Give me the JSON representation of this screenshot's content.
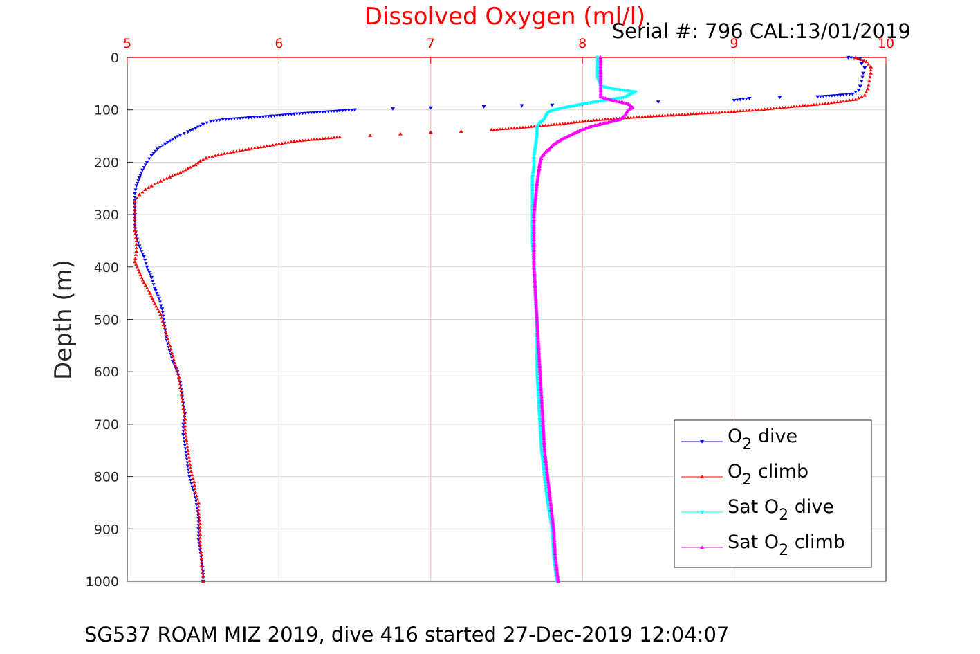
{
  "chart_data": {
    "type": "scatter",
    "title": "Dissolved Oxygen (ml/l)",
    "serial_label": "Serial #: 796  CAL:13/01/2019",
    "ylabel": "Depth (m)",
    "caption": "SG537 ROAM MIZ 2019, dive 416 started 27-Dec-2019 12:04:07",
    "xlim": [
      5,
      10
    ],
    "ylim": [
      0,
      1000
    ],
    "y_reversed": true,
    "x_axis_position": "top",
    "xticks": [
      5,
      6,
      7,
      8,
      9,
      10
    ],
    "yticks": [
      0,
      100,
      200,
      300,
      400,
      500,
      600,
      700,
      800,
      900,
      1000
    ],
    "grid": true,
    "grid_color_x": "#ffb3b3",
    "grid_color_y": "#d9d9d9",
    "axis_color": "#ff0000",
    "legend_position": "bottom-right",
    "series": [
      {
        "name": "O2 dive",
        "legend_label": {
          "pre": "O",
          "sub": "2",
          "post": " dive"
        },
        "color": "#0000ff",
        "marker": "triangle-down",
        "points": [
          [
            9.75,
            0
          ],
          [
            9.83,
            2
          ],
          [
            9.85,
            6
          ],
          [
            9.84,
            12
          ],
          [
            9.86,
            20
          ],
          [
            9.85,
            30
          ],
          [
            9.84,
            45
          ],
          [
            9.83,
            55
          ],
          [
            9.82,
            62
          ],
          [
            9.78,
            70
          ],
          [
            9.7,
            72
          ],
          [
            9.55,
            75
          ],
          [
            9.3,
            76
          ],
          [
            9.1,
            78
          ],
          [
            9.0,
            82
          ],
          [
            8.5,
            85
          ],
          [
            8.0,
            90
          ],
          [
            7.8,
            91
          ],
          [
            7.6,
            92
          ],
          [
            7.35,
            94
          ],
          [
            7.0,
            96
          ],
          [
            6.75,
            98
          ],
          [
            6.5,
            100
          ],
          [
            6.4,
            102
          ],
          [
            6.25,
            105
          ],
          [
            6.1,
            108
          ],
          [
            5.95,
            112
          ],
          [
            5.8,
            115
          ],
          [
            5.65,
            118
          ],
          [
            5.55,
            122
          ],
          [
            5.5,
            128
          ],
          [
            5.45,
            135
          ],
          [
            5.4,
            142
          ],
          [
            5.35,
            148
          ],
          [
            5.3,
            156
          ],
          [
            5.25,
            165
          ],
          [
            5.2,
            175
          ],
          [
            5.16,
            187
          ],
          [
            5.13,
            200
          ],
          [
            5.1,
            215
          ],
          [
            5.08,
            230
          ],
          [
            5.06,
            245
          ],
          [
            5.05,
            260
          ],
          [
            5.05,
            280
          ],
          [
            5.05,
            300
          ],
          [
            5.05,
            320
          ],
          [
            5.06,
            340
          ],
          [
            5.08,
            360
          ],
          [
            5.11,
            380
          ],
          [
            5.13,
            400
          ],
          [
            5.16,
            420
          ],
          [
            5.18,
            440
          ],
          [
            5.21,
            460
          ],
          [
            5.23,
            480
          ],
          [
            5.24,
            500
          ],
          [
            5.25,
            520
          ],
          [
            5.26,
            540
          ],
          [
            5.28,
            560
          ],
          [
            5.3,
            580
          ],
          [
            5.33,
            600
          ],
          [
            5.35,
            620
          ],
          [
            5.36,
            640
          ],
          [
            5.37,
            660
          ],
          [
            5.38,
            680
          ],
          [
            5.37,
            700
          ],
          [
            5.37,
            720
          ],
          [
            5.38,
            740
          ],
          [
            5.39,
            760
          ],
          [
            5.4,
            780
          ],
          [
            5.41,
            800
          ],
          [
            5.43,
            820
          ],
          [
            5.45,
            840
          ],
          [
            5.46,
            860
          ],
          [
            5.47,
            880
          ],
          [
            5.47,
            900
          ],
          [
            5.47,
            920
          ],
          [
            5.48,
            940
          ],
          [
            5.49,
            960
          ],
          [
            5.5,
            980
          ],
          [
            5.5,
            1000
          ]
        ]
      },
      {
        "name": "O2 climb",
        "legend_label": {
          "pre": "O",
          "sub": "2",
          "post": " climb"
        },
        "color": "#ff0000",
        "marker": "triangle-up",
        "points": [
          [
            9.8,
            0
          ],
          [
            9.87,
            8
          ],
          [
            9.9,
            18
          ],
          [
            9.9,
            30
          ],
          [
            9.89,
            45
          ],
          [
            9.88,
            60
          ],
          [
            9.86,
            72
          ],
          [
            9.8,
            80
          ],
          [
            9.7,
            84
          ],
          [
            9.6,
            88
          ],
          [
            9.45,
            92
          ],
          [
            9.3,
            96
          ],
          [
            9.2,
            99
          ],
          [
            9.1,
            101
          ],
          [
            9.0,
            103
          ],
          [
            8.9,
            105
          ],
          [
            8.75,
            107
          ],
          [
            8.6,
            110
          ],
          [
            8.45,
            112
          ],
          [
            8.3,
            115
          ],
          [
            8.15,
            118
          ],
          [
            8.0,
            122
          ],
          [
            7.85,
            127
          ],
          [
            7.7,
            131
          ],
          [
            7.55,
            135
          ],
          [
            7.4,
            138
          ],
          [
            7.2,
            141
          ],
          [
            7.0,
            143
          ],
          [
            6.8,
            146
          ],
          [
            6.6,
            149
          ],
          [
            6.4,
            152
          ],
          [
            6.25,
            156
          ],
          [
            6.1,
            160
          ],
          [
            6.0,
            165
          ],
          [
            5.9,
            170
          ],
          [
            5.8,
            175
          ],
          [
            5.7,
            180
          ],
          [
            5.6,
            186
          ],
          [
            5.52,
            192
          ],
          [
            5.48,
            198
          ],
          [
            5.45,
            205
          ],
          [
            5.4,
            212
          ],
          [
            5.35,
            220
          ],
          [
            5.28,
            228
          ],
          [
            5.22,
            236
          ],
          [
            5.16,
            245
          ],
          [
            5.12,
            252
          ],
          [
            5.08,
            262
          ],
          [
            5.05,
            275
          ],
          [
            5.05,
            290
          ],
          [
            5.05,
            310
          ],
          [
            5.05,
            330
          ],
          [
            5.06,
            350
          ],
          [
            5.06,
            370
          ],
          [
            5.05,
            390
          ],
          [
            5.08,
            410
          ],
          [
            5.11,
            430
          ],
          [
            5.15,
            450
          ],
          [
            5.18,
            470
          ],
          [
            5.22,
            490
          ],
          [
            5.24,
            510
          ],
          [
            5.26,
            530
          ],
          [
            5.28,
            550
          ],
          [
            5.3,
            570
          ],
          [
            5.32,
            590
          ],
          [
            5.34,
            610
          ],
          [
            5.35,
            630
          ],
          [
            5.36,
            650
          ],
          [
            5.37,
            670
          ],
          [
            5.38,
            690
          ],
          [
            5.38,
            710
          ],
          [
            5.39,
            730
          ],
          [
            5.4,
            750
          ],
          [
            5.41,
            770
          ],
          [
            5.42,
            790
          ],
          [
            5.44,
            810
          ],
          [
            5.45,
            830
          ],
          [
            5.47,
            850
          ],
          [
            5.47,
            870
          ],
          [
            5.48,
            890
          ],
          [
            5.48,
            910
          ],
          [
            5.48,
            930
          ],
          [
            5.49,
            950
          ],
          [
            5.49,
            970
          ],
          [
            5.5,
            990
          ],
          [
            5.5,
            1000
          ]
        ]
      },
      {
        "name": "Sat O2 dive",
        "legend_label": {
          "pre": "Sat O",
          "sub": "2",
          "post": " dive"
        },
        "color": "#00ffff",
        "marker": "triangle-down",
        "points": [
          [
            8.1,
            0
          ],
          [
            8.1,
            20
          ],
          [
            8.1,
            40
          ],
          [
            8.12,
            55
          ],
          [
            8.2,
            60
          ],
          [
            8.35,
            66
          ],
          [
            8.32,
            70
          ],
          [
            8.28,
            76
          ],
          [
            8.15,
            82
          ],
          [
            8.02,
            88
          ],
          [
            7.95,
            92
          ],
          [
            7.88,
            96
          ],
          [
            7.82,
            100
          ],
          [
            7.78,
            104
          ],
          [
            7.76,
            110
          ],
          [
            7.75,
            118
          ],
          [
            7.72,
            125
          ],
          [
            7.7,
            135
          ],
          [
            7.7,
            150
          ],
          [
            7.69,
            170
          ],
          [
            7.68,
            190
          ],
          [
            7.68,
            210
          ],
          [
            7.67,
            230
          ],
          [
            7.67,
            250
          ],
          [
            7.67,
            300
          ],
          [
            7.67,
            350
          ],
          [
            7.68,
            400
          ],
          [
            7.69,
            450
          ],
          [
            7.7,
            500
          ],
          [
            7.7,
            550
          ],
          [
            7.7,
            600
          ],
          [
            7.71,
            650
          ],
          [
            7.72,
            700
          ],
          [
            7.73,
            750
          ],
          [
            7.75,
            800
          ],
          [
            7.77,
            850
          ],
          [
            7.8,
            900
          ],
          [
            7.81,
            950
          ],
          [
            7.83,
            1000
          ]
        ]
      },
      {
        "name": "Sat O2 climb",
        "legend_label": {
          "pre": "Sat O",
          "sub": "2",
          "post": " climb"
        },
        "color": "#ff00ff",
        "marker": "triangle-up",
        "points": [
          [
            8.12,
            0
          ],
          [
            8.12,
            20
          ],
          [
            8.12,
            40
          ],
          [
            8.12,
            60
          ],
          [
            8.12,
            75
          ],
          [
            8.2,
            82
          ],
          [
            8.3,
            88
          ],
          [
            8.33,
            95
          ],
          [
            8.3,
            100
          ],
          [
            8.28,
            110
          ],
          [
            8.25,
            118
          ],
          [
            8.15,
            125
          ],
          [
            8.05,
            132
          ],
          [
            7.98,
            140
          ],
          [
            7.92,
            148
          ],
          [
            7.87,
            155
          ],
          [
            7.83,
            162
          ],
          [
            7.8,
            168
          ],
          [
            7.78,
            175
          ],
          [
            7.75,
            182
          ],
          [
            7.73,
            190
          ],
          [
            7.72,
            200
          ],
          [
            7.71,
            220
          ],
          [
            7.7,
            240
          ],
          [
            7.69,
            270
          ],
          [
            7.68,
            300
          ],
          [
            7.68,
            350
          ],
          [
            7.68,
            400
          ],
          [
            7.69,
            450
          ],
          [
            7.7,
            500
          ],
          [
            7.71,
            550
          ],
          [
            7.72,
            600
          ],
          [
            7.73,
            650
          ],
          [
            7.74,
            700
          ],
          [
            7.75,
            750
          ],
          [
            7.77,
            800
          ],
          [
            7.79,
            850
          ],
          [
            7.81,
            900
          ],
          [
            7.82,
            950
          ],
          [
            7.84,
            1000
          ]
        ]
      }
    ]
  }
}
